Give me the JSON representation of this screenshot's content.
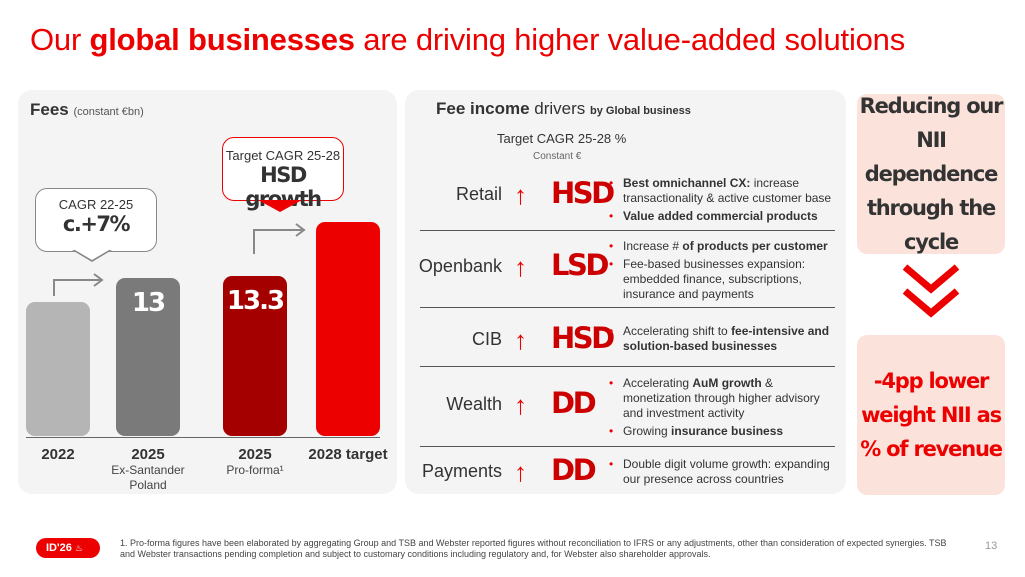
{
  "title": {
    "part1": "Our ",
    "bold": "global businesses",
    "part2": " are driving higher value-added solutions"
  },
  "fees": {
    "title": "Fees",
    "subtitle": "(constant €bn)",
    "bars": [
      {
        "value": "",
        "label": "2022",
        "sub": ""
      },
      {
        "value": "13",
        "label": "2025",
        "sub": "Ex-Santander Poland"
      },
      {
        "value": "13.3",
        "label": "2025",
        "sub": "Pro-forma¹"
      },
      {
        "value": "",
        "label": "2028 target",
        "sub": ""
      }
    ],
    "callout1": {
      "line1": "CAGR 22-25",
      "line2": "c.+7%"
    },
    "callout2": {
      "line1": "Target CAGR 25-28",
      "line2": "HSD growth"
    }
  },
  "drivers": {
    "title": "Fee income",
    "title_light": " drivers",
    "title_sub": "by Global business",
    "target": "Target CAGR 25-28 %",
    "constant": "Constant €",
    "rows": [
      {
        "name": "Retail",
        "code": "HSD",
        "bullets": [
          {
            "pre": "",
            "bold": "Best omnichannel CX:",
            "post": " increase transactionality & active customer base"
          },
          {
            "pre": "",
            "bold": "Value added commercial products",
            "post": ""
          }
        ]
      },
      {
        "name": "Openbank",
        "code": "LSD",
        "bullets": [
          {
            "pre": "Increase # ",
            "bold": "of products per customer",
            "post": ""
          },
          {
            "pre": "Fee-based businesses expansion: embedded finance, subscriptions, insurance and payments",
            "bold": "",
            "post": ""
          }
        ]
      },
      {
        "name": "CIB",
        "code": "HSD",
        "bullets": [
          {
            "pre": "Accelerating shift to ",
            "bold": "fee-intensive and solution-based businesses",
            "post": ""
          }
        ]
      },
      {
        "name": "Wealth",
        "code": "DD",
        "bullets": [
          {
            "pre": "Accelerating ",
            "bold": "AuM growth",
            "post": " & monetization through higher advisory and investment activity"
          },
          {
            "pre": "Growing ",
            "bold": "insurance business",
            "post": ""
          }
        ]
      },
      {
        "name": "Payments",
        "code": "DD",
        "bullets": [
          {
            "pre": "Double digit volume growth: expanding our presence across countries",
            "bold": "",
            "post": ""
          }
        ]
      }
    ]
  },
  "right": {
    "box1": "Reducing our NII dependence through the cycle",
    "box2": "-4pp lower weight NII as % of revenue",
    "chevron": "chevron-down-icon"
  },
  "footer": {
    "badge": "ID'26",
    "note": "1.   Pro-forma figures have been elaborated by aggregating Group and TSB and Webster reported figures without reconciliation to IFRS or any adjustments, other than consideration of expected synergies. TSB and Webster transactions pending completion and subject to customary conditions including regulatory and, for Webster also shareholder approvals.",
    "page": "13"
  },
  "colors": {
    "red": "#ec0000",
    "dark_red": "#a50000",
    "grey_light": "#b5b5b5",
    "grey_dark": "#7a7a7a",
    "peach": "#fbe3dc"
  }
}
